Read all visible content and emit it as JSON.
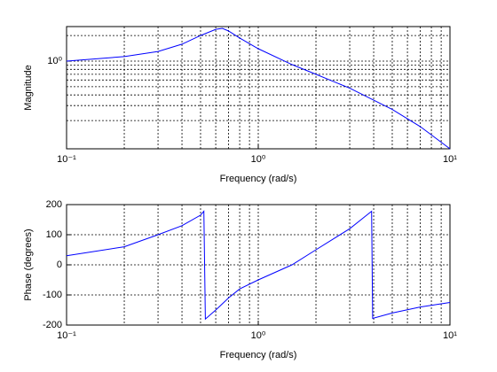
{
  "chart_data": [
    {
      "type": "line",
      "xlabel": "Frequency (rad/s)",
      "ylabel": "Magnitude",
      "xscale": "log",
      "yscale": "log",
      "grid": true,
      "xlim": [
        0.1,
        10
      ],
      "ylim": [
        0.093,
        2.55
      ],
      "xticks": [
        {
          "value": 0.1,
          "label": "10⁻¹"
        },
        {
          "value": 1,
          "label": "10⁰"
        },
        {
          "value": 10,
          "label": "10¹"
        }
      ],
      "yticks": [
        {
          "value": 1,
          "label": "10⁰"
        }
      ],
      "x": [
        0.1,
        0.2,
        0.3,
        0.4,
        0.5,
        0.6,
        0.65,
        0.7,
        0.8,
        1,
        1.5,
        2,
        3,
        5,
        7,
        10
      ],
      "series": [
        {
          "color": "#0000ff",
          "values": [
            1.0,
            1.13,
            1.3,
            1.58,
            2.0,
            2.37,
            2.43,
            2.26,
            1.87,
            1.4,
            0.91,
            0.7,
            0.48,
            0.27,
            0.17,
            0.093
          ]
        }
      ]
    },
    {
      "type": "line",
      "xlabel": "Frequency (rad/s)",
      "ylabel": "Phase (degrees)",
      "xscale": "log",
      "yscale": "linear",
      "grid": true,
      "xlim": [
        0.1,
        10
      ],
      "ylim": [
        -200,
        200
      ],
      "xticks": [
        {
          "value": 0.1,
          "label": "10⁻¹"
        },
        {
          "value": 1,
          "label": "10⁰"
        },
        {
          "value": 10,
          "label": "10¹"
        }
      ],
      "yticks": [
        -200,
        -100,
        0,
        100,
        200
      ],
      "x": [
        0.1,
        0.2,
        0.3,
        0.4,
        0.5,
        0.52,
        0.53,
        0.6,
        0.7,
        0.8,
        1,
        1.5,
        2,
        3,
        3.9,
        3.95,
        5,
        7,
        10
      ],
      "series": [
        {
          "color": "#0000ff",
          "values": [
            30,
            60,
            100,
            130,
            165,
            178,
            -180,
            -150,
            -110,
            -80,
            -50,
            0,
            50,
            120,
            178,
            -178,
            -160,
            -140,
            -125
          ]
        }
      ]
    }
  ]
}
